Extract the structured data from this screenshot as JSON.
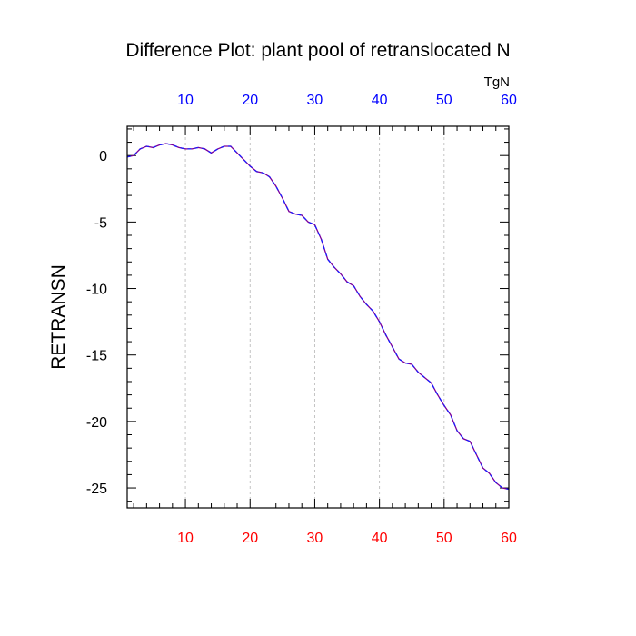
{
  "chart_data": {
    "type": "line",
    "title": "Difference Plot: plant pool of retranslocated N",
    "ylabel": "RETRANSN",
    "top_axis_units": "TgN",
    "xlim": [
      1,
      60
    ],
    "ylim": [
      -26.5,
      2.2
    ],
    "xticks": [
      10,
      20,
      30,
      40,
      50,
      60
    ],
    "yticks": [
      0,
      -5,
      -10,
      -15,
      -20,
      -25
    ],
    "bottom_tick_color": "#ff0000",
    "top_tick_color": "#0000ff",
    "x_gridlines": "dashed vertical at major x ticks",
    "series": [
      {
        "color": "#7a0099",
        "dash_color": "#1a1aff",
        "x": [
          1,
          2,
          3,
          4,
          5,
          6,
          7,
          8,
          9,
          10,
          11,
          12,
          13,
          14,
          15,
          16,
          17,
          18,
          19,
          20,
          21,
          22,
          23,
          24,
          25,
          26,
          27,
          28,
          29,
          30,
          31,
          32,
          33,
          34,
          35,
          36,
          37,
          38,
          39,
          40,
          41,
          42,
          43,
          44,
          45,
          46,
          47,
          48,
          49,
          50,
          51,
          52,
          53,
          54,
          55,
          56,
          57,
          58,
          59,
          60
        ],
        "y": [
          -0.1,
          0.0,
          0.5,
          0.7,
          0.6,
          0.8,
          0.9,
          0.8,
          0.6,
          0.5,
          0.5,
          0.6,
          0.5,
          0.2,
          0.5,
          0.7,
          0.7,
          0.2,
          -0.3,
          -0.8,
          -1.2,
          -1.3,
          -1.6,
          -2.3,
          -3.2,
          -4.2,
          -4.4,
          -4.5,
          -5.0,
          -5.2,
          -6.3,
          -7.8,
          -8.4,
          -8.9,
          -9.5,
          -9.8,
          -10.6,
          -11.2,
          -11.7,
          -12.5,
          -13.5,
          -14.4,
          -15.3,
          -15.6,
          -15.7,
          -16.3,
          -16.7,
          -17.1,
          -18.0,
          -18.8,
          -19.5,
          -20.7,
          -21.3,
          -21.5,
          -22.5,
          -23.5,
          -23.9,
          -24.6,
          -25.0,
          -25.1
        ]
      }
    ]
  }
}
